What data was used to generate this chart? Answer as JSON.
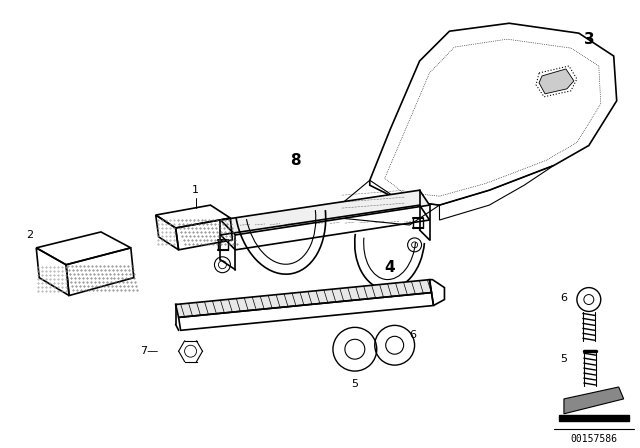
{
  "background_color": "#ffffff",
  "part_number": "00157586",
  "fig_width": 6.4,
  "fig_height": 4.48,
  "dpi": 100
}
